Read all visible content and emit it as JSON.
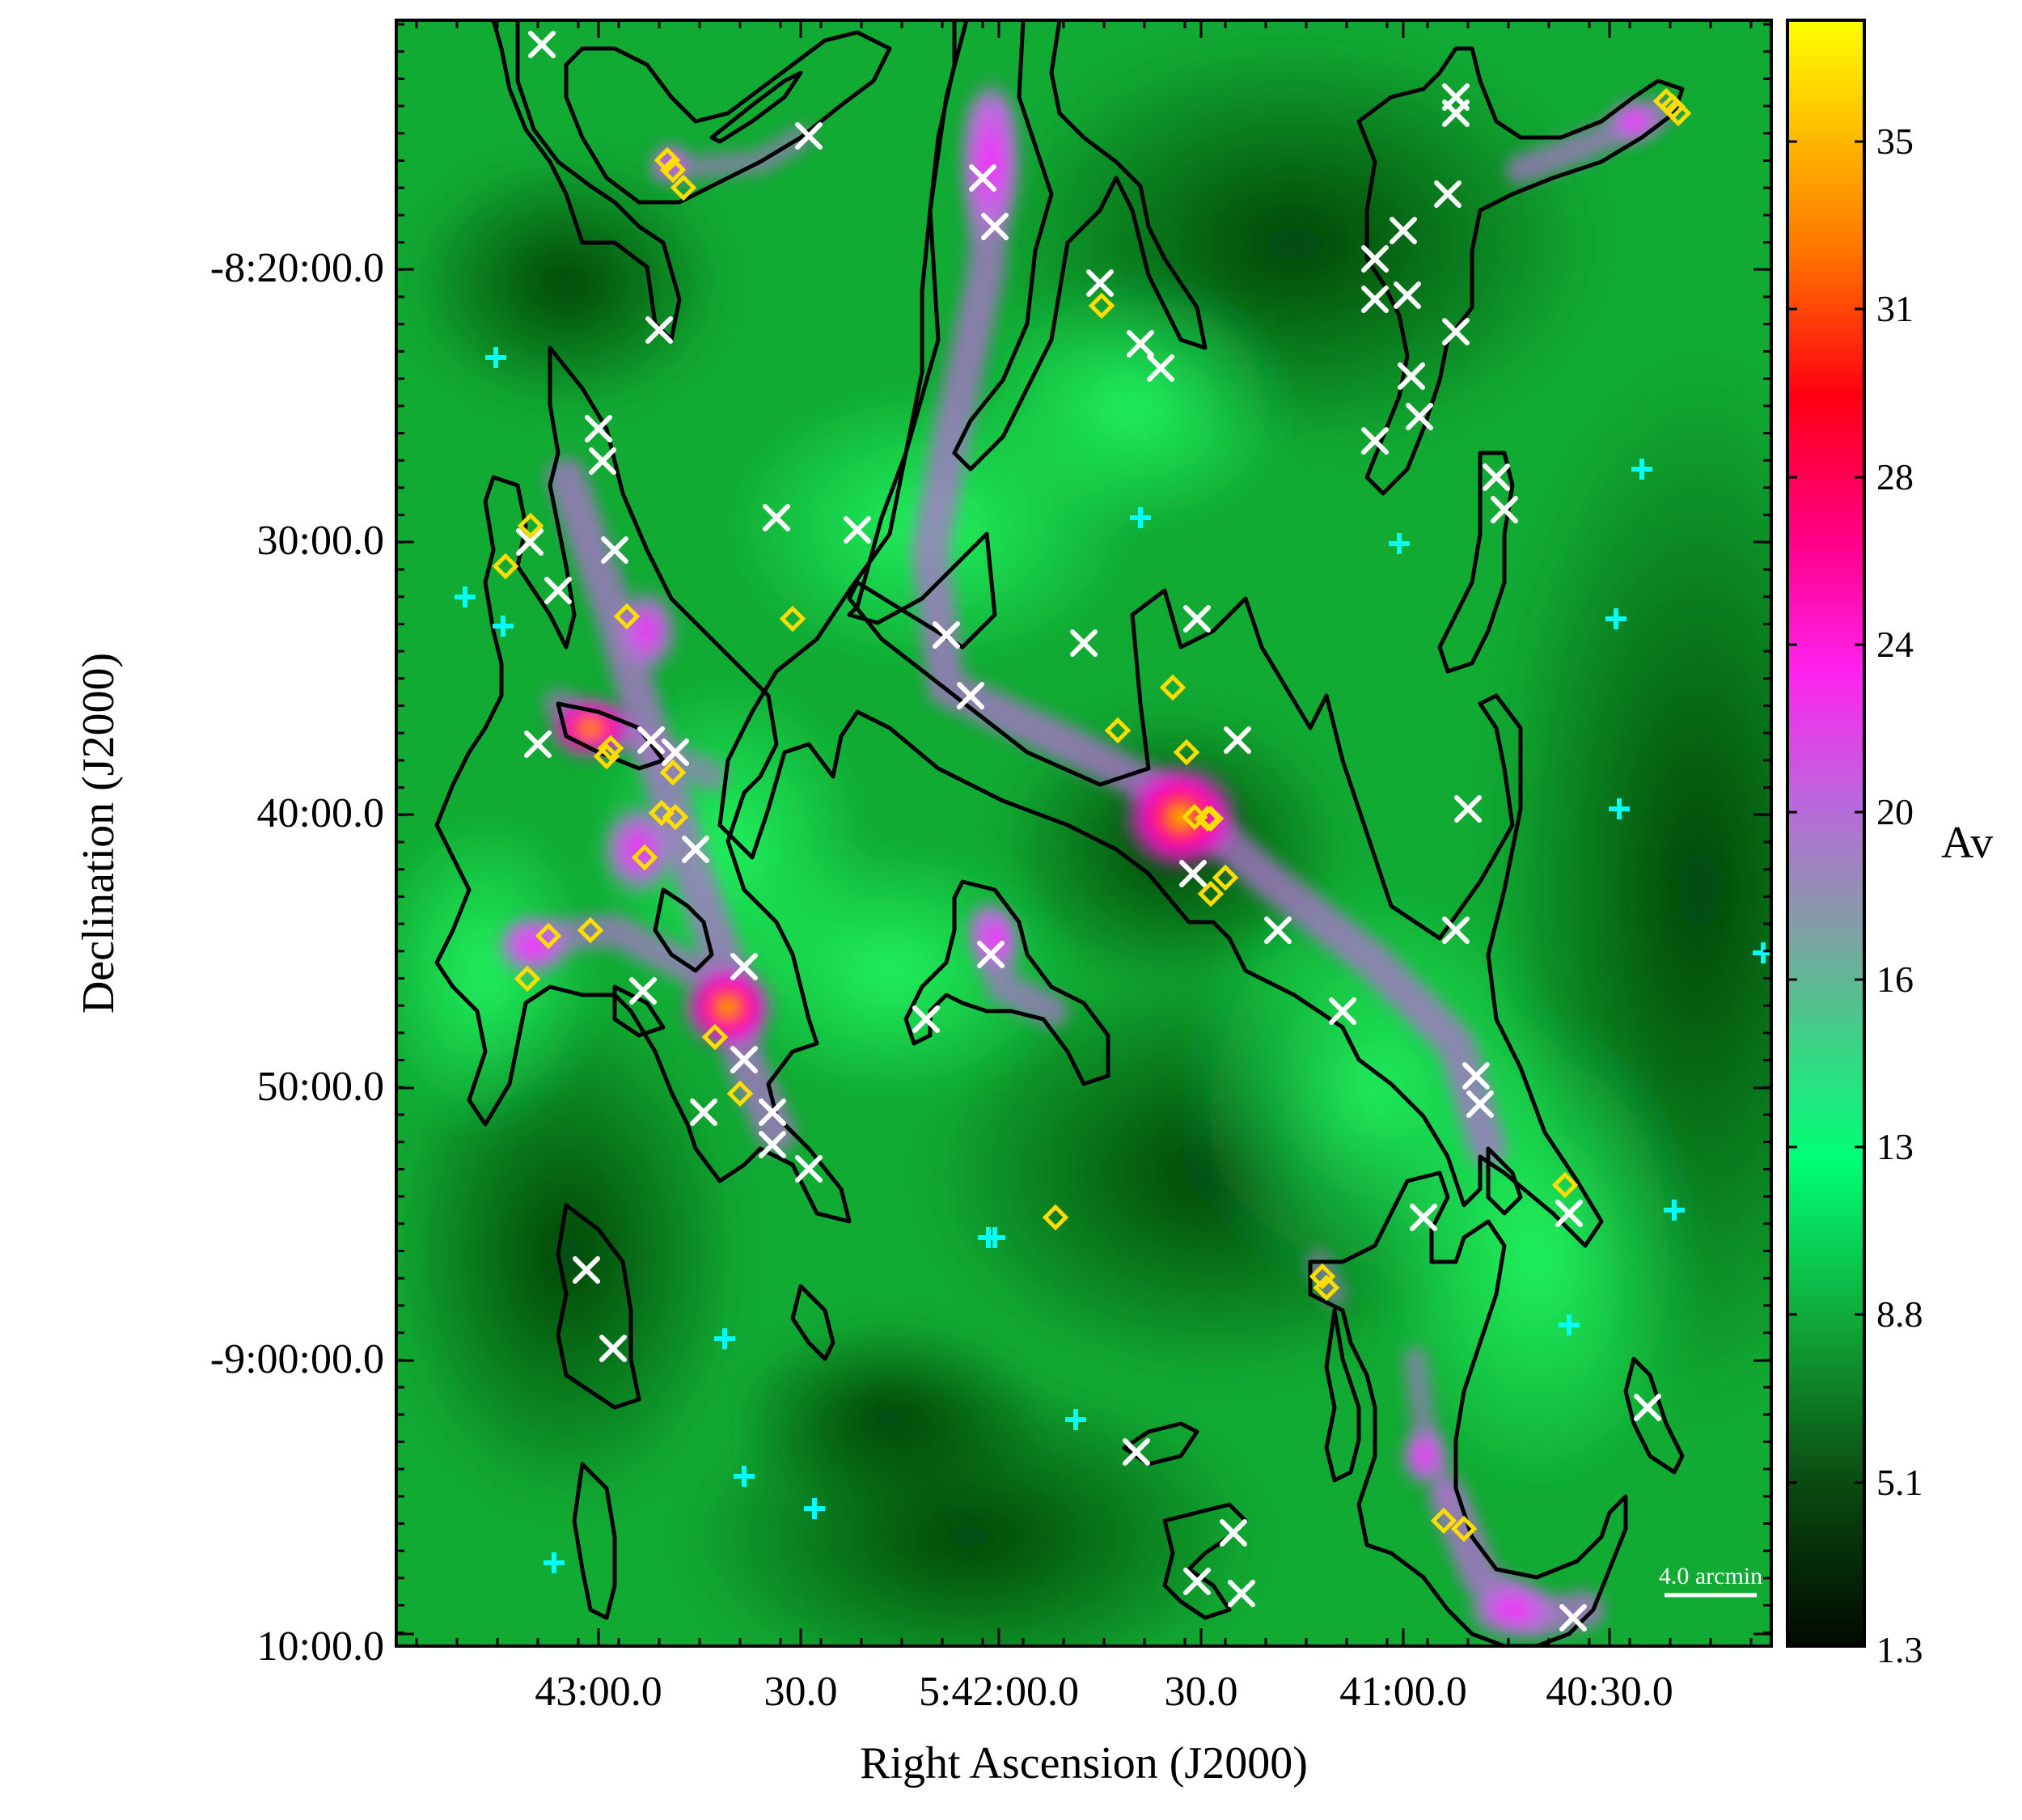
{
  "figure": {
    "xlabel": "Right Ascension (J2000)",
    "ylabel": "Declination (J2000)",
    "x_ticks": [
      "43:00.0",
      "30.0",
      "5:42:00.0",
      "30.0",
      "41:00.0",
      "40:30.0"
    ],
    "y_ticks": [
      "-8:20:00.0",
      "30:00.0",
      "40:00.0",
      "50:00.0",
      "-9:00:00.0",
      "10:00.0"
    ],
    "scale_bar_label": "4.0 arcmin",
    "colorbar": {
      "label": "Av",
      "ticks": [
        "35",
        "31",
        "28",
        "24",
        "20",
        "16",
        "13",
        "8.8",
        "5.1",
        "1.3"
      ]
    },
    "colors": {
      "low": "#003300",
      "mid": "#00ee66",
      "magenta": "#ff33ff",
      "red": "#ff1100",
      "yellow": "#ffff00",
      "contour": "#000000",
      "cross_marker": "#ffffff",
      "plus_marker": "#00ffff",
      "diamond_marker": "#ffdd00"
    },
    "marker_types": [
      "white-x-marker",
      "cyan-plus-marker",
      "yellow-diamond-marker"
    ]
  }
}
